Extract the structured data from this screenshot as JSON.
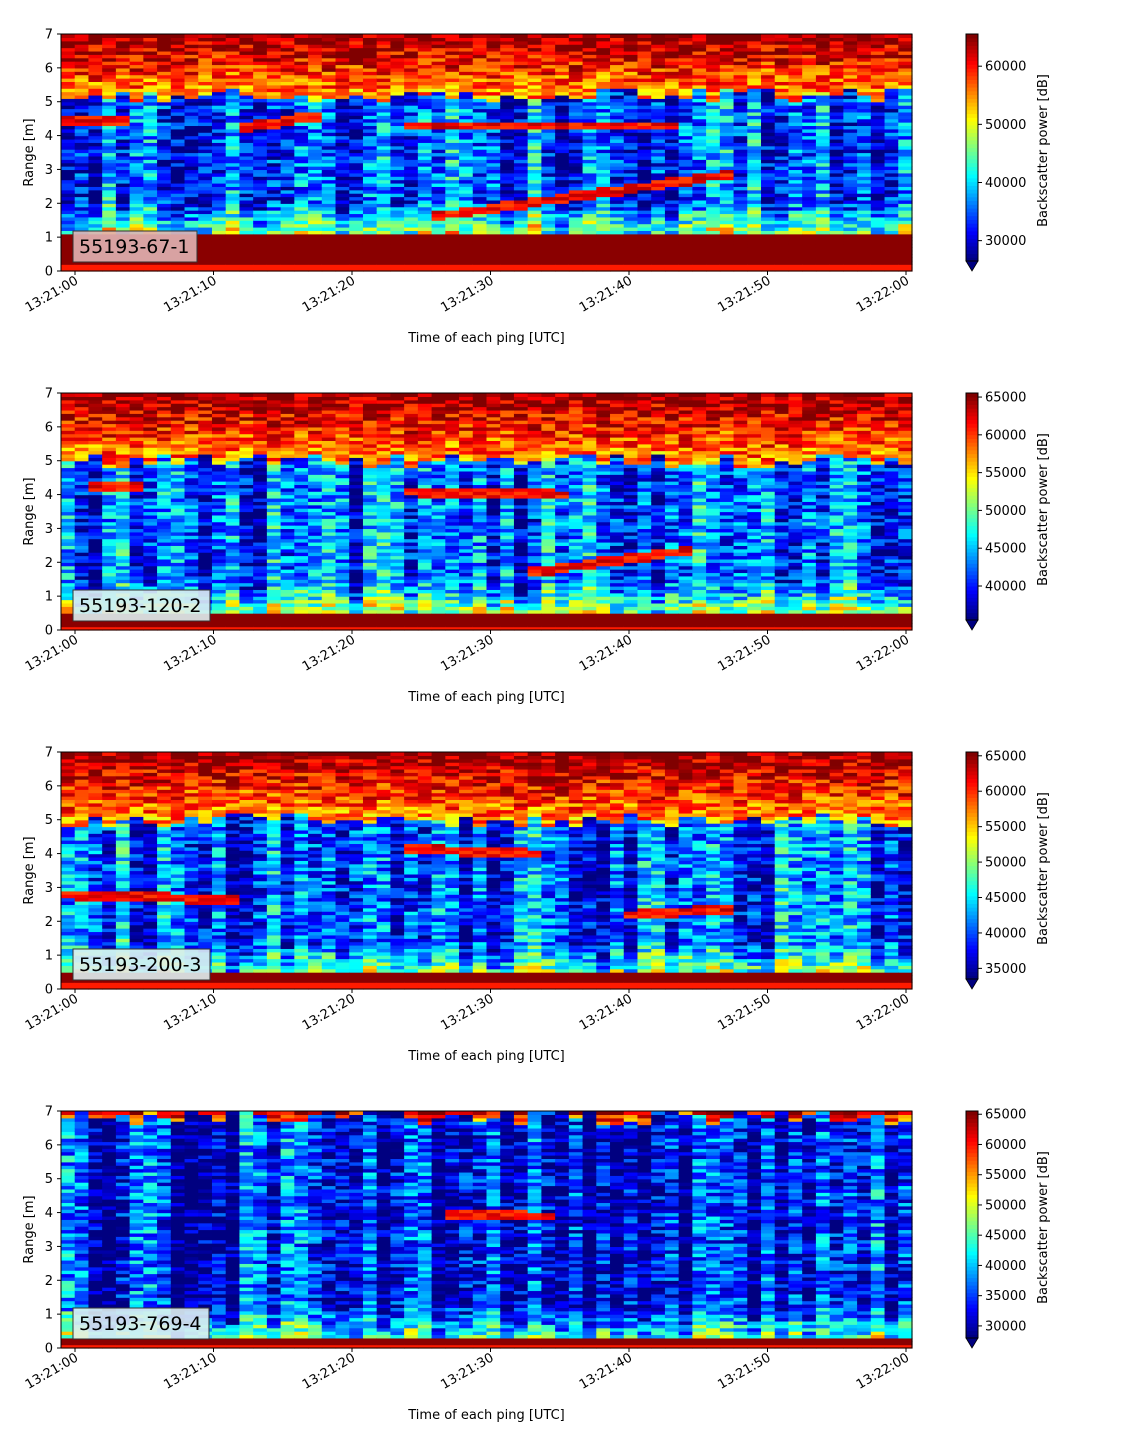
{
  "chart_data": [
    {
      "type": "heatmap",
      "panel_label": "55193-67-1",
      "xlabel": "Time of each ping [UTC]",
      "ylabel": "Range [m]",
      "x_range": [
        "13:21:00",
        "13:22:00"
      ],
      "x_ticks": [
        "13:21:00",
        "13:21:10",
        "13:21:20",
        "13:21:30",
        "13:21:40",
        "13:21:50",
        "13:22:00"
      ],
      "ylim": [
        0,
        7
      ],
      "y_ticks": [
        "0",
        "1",
        "2",
        "3",
        "4",
        "5",
        "6",
        "7"
      ],
      "colorbar": {
        "label": "Backscatter power [dB]",
        "colormap": "jet",
        "extend": "min",
        "range": [
          26500,
          65535
        ],
        "ticks": [
          "30000",
          "40000",
          "50000",
          "60000"
        ]
      },
      "features": {
        "bottom_band": [
          0.25,
          1.15
        ],
        "surface_edge": 5.2,
        "lines": [
          {
            "t": [
              0,
              4
            ],
            "r": [
              4.45,
              4.45
            ]
          },
          {
            "t": [
              12,
              18
            ],
            "r": [
              4.2,
              4.6
            ]
          },
          {
            "t": [
              24,
              44
            ],
            "r": [
              4.3,
              4.3
            ]
          },
          {
            "t": [
              26,
              48
            ],
            "r": [
              1.6,
              2.9
            ]
          }
        ]
      }
    },
    {
      "type": "heatmap",
      "panel_label": "55193-120-2",
      "xlabel": "Time of each ping [UTC]",
      "ylabel": "Range [m]",
      "x_range": [
        "13:21:00",
        "13:22:00"
      ],
      "x_ticks": [
        "13:21:00",
        "13:21:10",
        "13:21:20",
        "13:21:30",
        "13:21:40",
        "13:21:50",
        "13:22:00"
      ],
      "ylim": [
        0,
        7
      ],
      "y_ticks": [
        "0",
        "1",
        "2",
        "3",
        "4",
        "5",
        "6",
        "7"
      ],
      "colorbar": {
        "label": "Backscatter power [dB]",
        "colormap": "jet",
        "extend": "min",
        "range": [
          35500,
          65535
        ],
        "ticks": [
          "40000",
          "45000",
          "50000",
          "55000",
          "60000",
          "65000"
        ]
      },
      "features": {
        "bottom_band": [
          0.1,
          0.55
        ],
        "surface_edge": 5.0,
        "lines": [
          {
            "t": [
              1,
              5
            ],
            "r": [
              4.25,
              4.25
            ]
          },
          {
            "t": [
              24,
              36
            ],
            "r": [
              4.1,
              4.0
            ]
          },
          {
            "t": [
              33,
              45
            ],
            "r": [
              1.7,
              2.4
            ]
          }
        ]
      }
    },
    {
      "type": "heatmap",
      "panel_label": "55193-200-3",
      "xlabel": "Time of each ping [UTC]",
      "ylabel": "Range [m]",
      "x_range": [
        "13:21:00",
        "13:22:00"
      ],
      "x_ticks": [
        "13:21:00",
        "13:21:10",
        "13:21:20",
        "13:21:30",
        "13:21:40",
        "13:21:50",
        "13:22:00"
      ],
      "ylim": [
        0,
        7
      ],
      "y_ticks": [
        "0",
        "1",
        "2",
        "3",
        "4",
        "5",
        "6",
        "7"
      ],
      "colorbar": {
        "label": "Backscatter power [dB]",
        "colormap": "jet",
        "extend": "min",
        "range": [
          33500,
          65535
        ],
        "ticks": [
          "35000",
          "40000",
          "45000",
          "50000",
          "55000",
          "60000",
          "65000"
        ]
      },
      "features": {
        "bottom_band": [
          0.2,
          0.45
        ],
        "surface_edge": 5.0,
        "lines": [
          {
            "t": [
              0,
              12
            ],
            "r": [
              2.8,
              2.65
            ]
          },
          {
            "t": [
              24,
              34
            ],
            "r": [
              4.15,
              4.0
            ]
          },
          {
            "t": [
              40,
              48
            ],
            "r": [
              2.2,
              2.4
            ]
          }
        ]
      }
    },
    {
      "type": "heatmap",
      "panel_label": "55193-769-4",
      "xlabel": "Time of each ping [UTC]",
      "ylabel": "Range [m]",
      "x_range": [
        "13:21:00",
        "13:22:00"
      ],
      "x_ticks": [
        "13:21:00",
        "13:21:10",
        "13:21:20",
        "13:21:30",
        "13:21:40",
        "13:21:50",
        "13:22:00"
      ],
      "ylim": [
        0,
        7
      ],
      "y_ticks": [
        "0",
        "1",
        "2",
        "3",
        "4",
        "5",
        "6",
        "7"
      ],
      "colorbar": {
        "label": "Backscatter power [dB]",
        "colormap": "jet",
        "extend": "min",
        "range": [
          28000,
          65535
        ],
        "ticks": [
          "30000",
          "35000",
          "40000",
          "45000",
          "50000",
          "55000",
          "60000",
          "65000"
        ]
      },
      "features": {
        "bottom_band": [
          0.15,
          0.35
        ],
        "surface_edge": 6.8,
        "lines": [
          {
            "t": [
              27,
              35
            ],
            "r": [
              3.95,
              3.9
            ]
          }
        ]
      }
    }
  ]
}
